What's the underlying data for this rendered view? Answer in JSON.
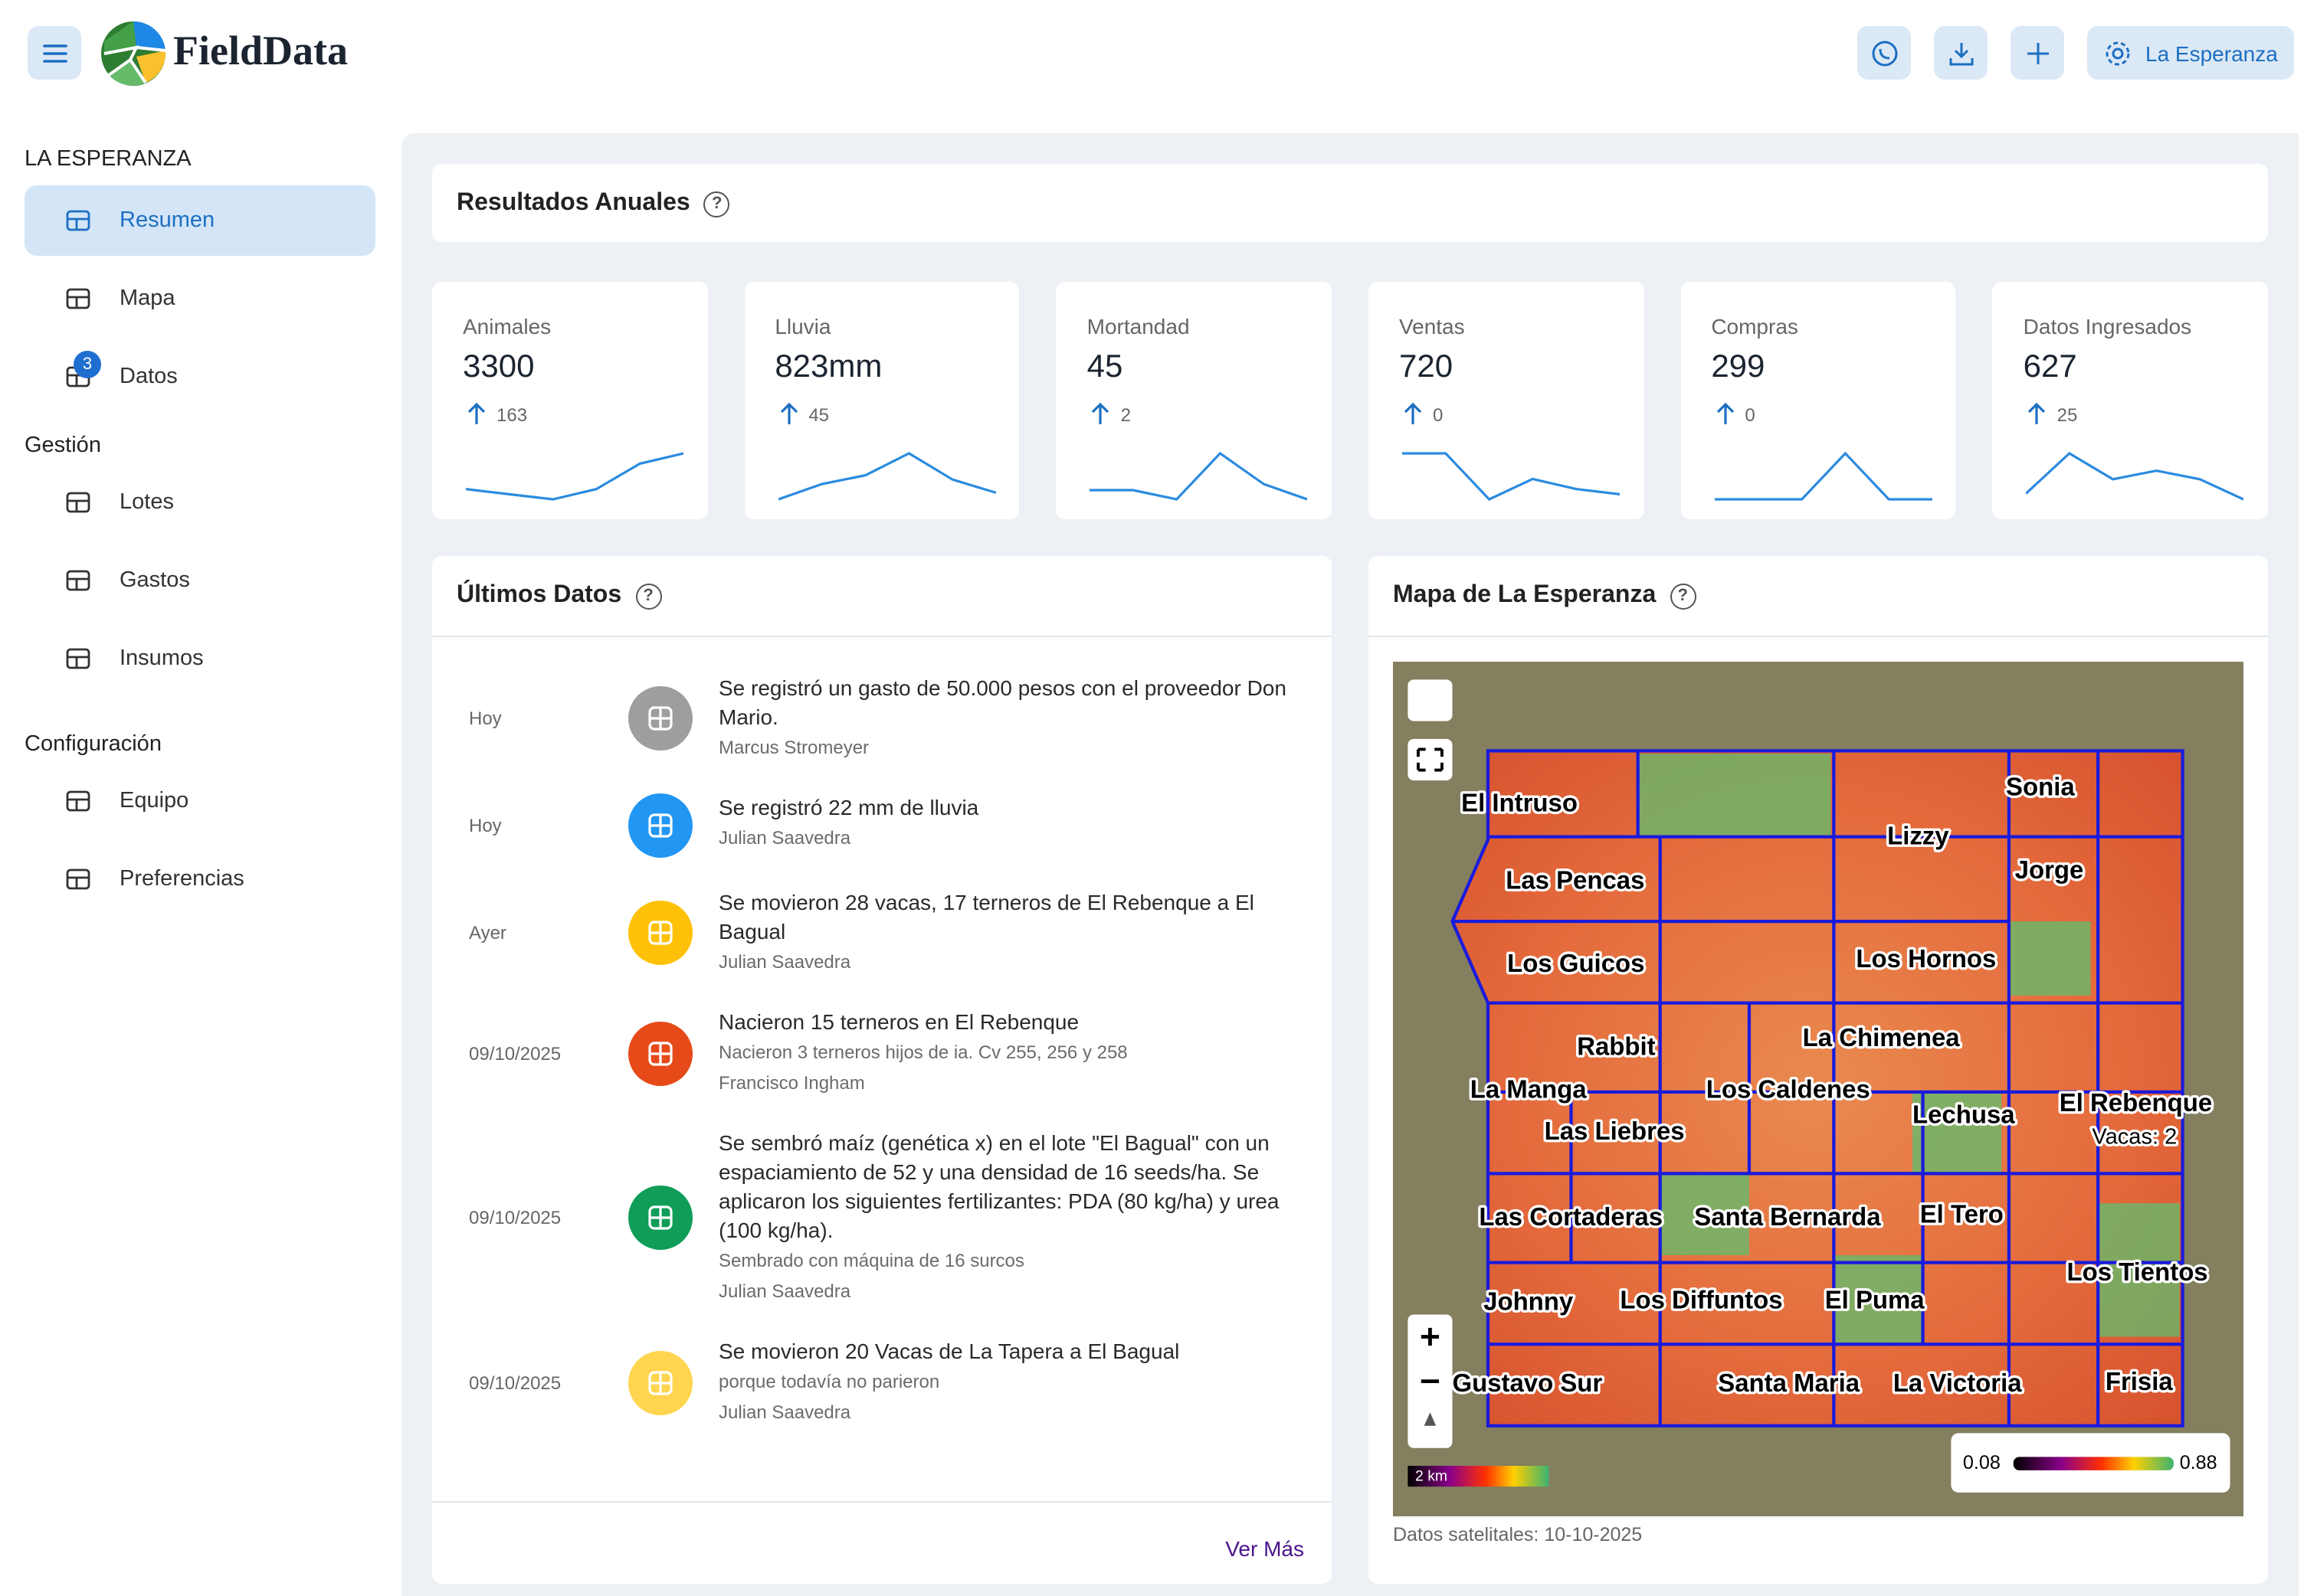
{
  "header": {
    "brand": "FieldData",
    "farm_button": "La Esperanza"
  },
  "sidebar": {
    "farm_title": "LA ESPERANZA",
    "main": [
      "Resumen",
      "Mapa",
      "Datos"
    ],
    "datos_badge": 3,
    "sections": [
      {
        "title": "Gestión",
        "items": [
          "Lotes",
          "Gastos",
          "Insumos"
        ]
      },
      {
        "title": "Configuración",
        "items": [
          "Equipo",
          "Preferencias"
        ]
      }
    ]
  },
  "annual": {
    "title": "Resultados Anuales",
    "cards": [
      {
        "label": "Animales",
        "value": 3300,
        "change": 163,
        "trend": [
          12,
          11,
          10,
          12,
          17,
          19
        ]
      },
      {
        "label": "Lluvia",
        "value": "823mm",
        "change": 45,
        "trend": [
          5,
          12,
          16,
          26,
          14,
          8
        ]
      },
      {
        "label": "Mortandad",
        "value": 45,
        "change": 2,
        "trend": [
          12,
          12,
          9,
          24,
          14,
          9
        ]
      },
      {
        "label": "Ventas",
        "value": 720,
        "change": 0,
        "trend": [
          22,
          22,
          4,
          12,
          8,
          6
        ]
      },
      {
        "label": "Compras",
        "value": 299,
        "change": 0,
        "trend": [
          5,
          5,
          5,
          22,
          5,
          5
        ]
      },
      {
        "label": "Datos Ingresados",
        "value": 627,
        "change": 25,
        "trend": [
          10,
          24,
          15,
          18,
          15,
          8
        ]
      }
    ]
  },
  "feed": {
    "title": "Últimos Datos",
    "more": "Ver Más",
    "items": [
      {
        "date": "Hoy",
        "color": "#9e9e9e",
        "text": "Se registró un gasto de 50.000 pesos con el proveedor Don Mario.",
        "author": "Marcus Stromeyer"
      },
      {
        "date": "Hoy",
        "color": "#2196f3",
        "text": "Se registró 22 mm de lluvia",
        "author": "Julian Saavedra"
      },
      {
        "date": "Ayer",
        "color": "#ffc107",
        "text": "Se movieron 28 vacas, 17 terneros de El Rebenque a El Bagual",
        "author": "Julian Saavedra"
      },
      {
        "date": "09/10/2025",
        "color": "#e64a19",
        "text": "Nacieron 15 terneros en El Rebenque",
        "detail": "Nacieron 3 terneros hijos de ia. Cv 255, 256 y 258",
        "author": "Francisco Ingham"
      },
      {
        "date": "09/10/2025",
        "color": "#0f9d58",
        "text": "Se sembró maíz (genética x) en el lote \"El Bagual\" con un espaciamiento de 52 y una densidad de 16 seeds/ha. Se aplicaron los siguientes fertilizantes: PDA (80 kg/ha) y urea (100 kg/ha).",
        "detail": "Sembrado con máquina de 16 surcos",
        "author": "Julian Saavedra"
      },
      {
        "date": "09/10/2025",
        "color": "#ffd54f",
        "text": "Se movieron 20 Vacas de La Tapera a El Bagual",
        "detail": "porque todavía no parieron",
        "author": "Julian Saavedra"
      }
    ]
  },
  "map": {
    "title": "Mapa de La Esperanza",
    "lots": [
      "El Intruso",
      "Las Pencas",
      "Los Guicos",
      "Lizzy",
      "Sonia",
      "Jorge",
      "Los Hornos",
      "La Chimenea",
      "Rabbit",
      "La Manga",
      "Los Caldenes",
      "Lechusa",
      "El Rebenque",
      "Las Liebres",
      "Las Cortaderas",
      "Santa Bernarda",
      "El Tero",
      "Los Tientos",
      "Johnny",
      "Los Diffuntos",
      "El Puma",
      "Gustavo Sur",
      "Santa Maria",
      "La Victoria",
      "Frisia"
    ],
    "note": "Vacas: 2",
    "scale_bar": "2 km",
    "legend_min": 0.08,
    "legend_max": 0.88,
    "caption": "Datos satelitales: 10-10-2025"
  }
}
